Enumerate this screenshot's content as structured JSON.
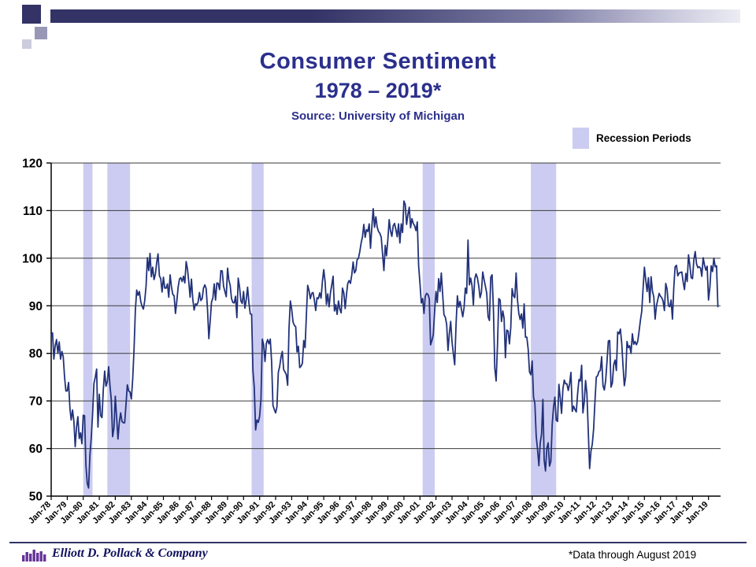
{
  "slide": {
    "title_line1": "Consumer Sentiment",
    "title_line2": "1978 – 2019*",
    "source_line": "Source: University of Michigan",
    "legend_label": "Recession Periods",
    "footer_company": "Elliott D. Pollack & Company",
    "footer_note": "*Data through August 2019"
  },
  "colors": {
    "accent_navy": "#2b2f8c",
    "line": "#22327a",
    "recession_band": "#ccccf2",
    "grid": "#3a3a3a",
    "logo_purple": "#663399"
  },
  "chart_data": {
    "type": "line",
    "title": "Consumer Sentiment 1978 – 2019 (Source: University of Michigan)",
    "xlabel": "",
    "ylabel": "",
    "ylim": [
      50,
      120
    ],
    "ytick_step": 10,
    "grid": true,
    "x_axis_min": 1978,
    "x_axis_max": 2019.75,
    "frequency": "monthly",
    "legend": {
      "label": "Recession Periods",
      "position": "top-right"
    },
    "x_tick_labels": [
      "Jan-78",
      "Jan-79",
      "Jan-80",
      "Jan-81",
      "Jan-82",
      "Jan-83",
      "Jan-84",
      "Jan-85",
      "Jan-86",
      "Jan-87",
      "Jan-88",
      "Jan-89",
      "Jan-90",
      "Jan-91",
      "Jan-92",
      "Jan-93",
      "Jan-94",
      "Jan-95",
      "Jan-96",
      "Jan-97",
      "Jan-98",
      "Jan-99",
      "Jan-00",
      "Jan-01",
      "Jan-02",
      "Jan-03",
      "Jan-04",
      "Jan-05",
      "Jan-06",
      "Jan-07",
      "Jan-08",
      "Jan-09",
      "Jan-10",
      "Jan-11",
      "Jan-12",
      "Jan-13",
      "Jan-14",
      "Jan-15",
      "Jan-16",
      "Jan-17",
      "Jan-18",
      "Jan-19"
    ],
    "recession_periods": [
      [
        1980.0,
        1980.58
      ],
      [
        1981.5,
        1982.92
      ],
      [
        1990.5,
        1991.25
      ],
      [
        2001.17,
        2001.92
      ],
      [
        2007.92,
        2009.5
      ]
    ],
    "series": [
      {
        "name": "University of Michigan Consumer Sentiment Index",
        "start": "1978-01",
        "end": "2019-08",
        "values": [
          83.7,
          84.3,
          78.8,
          81.6,
          82.9,
          80.0,
          82.4,
          78.8,
          80.4,
          79.3,
          75.0,
          72.1,
          72.1,
          73.9,
          68.4,
          66.0,
          68.1,
          65.8,
          60.4,
          64.5,
          66.7,
          62.1,
          63.3,
          61.0,
          67.0,
          66.9,
          56.5,
          52.7,
          51.7,
          58.7,
          62.3,
          67.3,
          73.7,
          75.0,
          76.7,
          64.5,
          71.4,
          66.9,
          66.5,
          72.4,
          76.3,
          73.1,
          74.1,
          77.2,
          73.1,
          70.3,
          62.5,
          64.3,
          71.0,
          66.5,
          62.0,
          65.5,
          67.5,
          65.7,
          65.4,
          65.4,
          69.3,
          73.4,
          72.1,
          71.9,
          70.4,
          74.6,
          80.8,
          89.1,
          93.3,
          92.2,
          93.0,
          90.9,
          89.9,
          89.3,
          91.1,
          94.2,
          100.1,
          97.4,
          101.0,
          96.1,
          98.1,
          95.5,
          96.6,
          99.1,
          100.9,
          96.3,
          95.7,
          92.9,
          96.0,
          93.7,
          93.7,
          94.6,
          91.8,
          96.5,
          94.0,
          92.4,
          92.1,
          88.4,
          90.9,
          93.9,
          95.6,
          95.9,
          95.1,
          96.2,
          94.8,
          99.3,
          97.7,
          94.9,
          91.8,
          95.6,
          91.4,
          89.1,
          90.4,
          90.2,
          90.8,
          92.8,
          91.1,
          91.5,
          93.7,
          94.4,
          93.6,
          89.3,
          83.1,
          86.8,
          90.8,
          91.6,
          94.6,
          91.2,
          94.8,
          94.7,
          93.4,
          97.4,
          97.3,
          94.1,
          93.0,
          91.9,
          97.9,
          95.4,
          94.3,
          91.5,
          90.7,
          90.6,
          92.0,
          87.5,
          95.8,
          93.9,
          91.0,
          90.5,
          93.0,
          89.5,
          91.3,
          93.9,
          90.6,
          88.3,
          88.2,
          76.4,
          72.8,
          63.9,
          66.0,
          65.5,
          66.8,
          70.4,
          83.0,
          81.8,
          78.3,
          82.1,
          82.9,
          82.0,
          83.0,
          78.3,
          69.1,
          68.2,
          67.5,
          68.8,
          76.0,
          77.2,
          79.2,
          80.4,
          76.6,
          76.1,
          75.5,
          73.3,
          85.3,
          91.0,
          89.3,
          86.6,
          85.9,
          85.6,
          80.3,
          81.5,
          77.0,
          77.3,
          77.9,
          82.7,
          81.2,
          88.2,
          94.3,
          93.2,
          91.5,
          92.6,
          92.8,
          91.2,
          89.0,
          91.7,
          91.5,
          92.7,
          91.6,
          95.1,
          97.6,
          95.1,
          90.3,
          92.5,
          89.8,
          92.7,
          94.4,
          96.2,
          88.9,
          90.2,
          88.2,
          91.0,
          89.3,
          88.5,
          93.7,
          92.7,
          89.4,
          92.4,
          94.7,
          95.3,
          94.7,
          96.5,
          99.2,
          96.9,
          97.4,
          99.7,
          100.0,
          101.4,
          103.2,
          104.5,
          107.1,
          104.4,
          106.0,
          105.6,
          107.2,
          102.1,
          106.6,
          110.4,
          106.5,
          108.7,
          106.5,
          105.6,
          105.2,
          104.4,
          100.9,
          97.4,
          102.7,
          100.5,
          103.9,
          108.1,
          105.7,
          104.6,
          106.8,
          107.3,
          106.0,
          104.5,
          107.2,
          103.2,
          107.2,
          105.4,
          112.0,
          111.3,
          107.1,
          109.2,
          110.7,
          106.4,
          108.3,
          107.3,
          106.8,
          105.8,
          107.6,
          98.4,
          94.7,
          90.6,
          91.5,
          88.4,
          92.0,
          92.6,
          92.4,
          91.5,
          81.8,
          82.7,
          83.9,
          88.8,
          93.0,
          90.7,
          95.7,
          93.0,
          96.9,
          92.4,
          88.1,
          87.6,
          86.1,
          80.6,
          84.2,
          86.7,
          82.4,
          79.9,
          77.6,
          86.0,
          92.1,
          89.7,
          90.9,
          89.3,
          87.7,
          89.6,
          93.7,
          92.6,
          103.8,
          94.4,
          95.8,
          94.2,
          90.2,
          95.6,
          96.7,
          95.9,
          94.2,
          91.7,
          92.8,
          97.1,
          95.5,
          94.1,
          92.6,
          87.7,
          86.9,
          96.0,
          96.5,
          89.1,
          76.9,
          74.2,
          81.6,
          91.5,
          91.2,
          86.7,
          88.9,
          87.4,
          79.1,
          84.9,
          84.7,
          82.0,
          85.4,
          93.6,
          92.1,
          91.7,
          96.9,
          91.3,
          88.4,
          87.1,
          88.3,
          85.3,
          90.4,
          83.4,
          83.4,
          80.9,
          76.1,
          75.5,
          78.4,
          70.8,
          69.5,
          62.6,
          59.8,
          56.4,
          61.2,
          63.0,
          70.3,
          57.6,
          55.3,
          60.1,
          61.2,
          56.3,
          57.3,
          65.1,
          68.7,
          70.8,
          66.0,
          65.7,
          73.5,
          70.6,
          67.4,
          72.5,
          74.4,
          73.6,
          73.6,
          72.2,
          73.6,
          76.0,
          67.8,
          68.9,
          68.2,
          67.7,
          71.6,
          74.5,
          74.2,
          77.5,
          67.5,
          69.8,
          74.3,
          71.5,
          63.7,
          55.8,
          59.4,
          60.9,
          64.1,
          69.9,
          75.0,
          75.3,
          76.2,
          76.4,
          79.3,
          73.2,
          72.3,
          74.3,
          78.3,
          82.6,
          82.7,
          72.9,
          73.8,
          77.6,
          78.6,
          76.4,
          84.5,
          84.1,
          85.1,
          82.1,
          77.5,
          73.2,
          75.1,
          82.5,
          81.2,
          81.6,
          80.0,
          84.1,
          81.9,
          82.5,
          81.8,
          82.5,
          84.6,
          86.9,
          88.8,
          93.6,
          98.1,
          95.4,
          93.0,
          95.9,
          90.7,
          96.1,
          93.1,
          91.9,
          87.2,
          90.0,
          91.3,
          92.6,
          92.0,
          91.7,
          91.0,
          89.0,
          94.7,
          93.5,
          90.0,
          89.8,
          91.2,
          87.2,
          93.8,
          98.2,
          98.5,
          96.3,
          96.9,
          97.0,
          97.1,
          95.0,
          93.4,
          96.8,
          95.1,
          100.7,
          98.5,
          95.9,
          95.7,
          99.7,
          101.4,
          98.8,
          98.0,
          98.2,
          97.9,
          96.2,
          100.1,
          98.6,
          97.5,
          98.3,
          91.2,
          93.8,
          98.4,
          97.2,
          100.0,
          98.2,
          98.4,
          89.8
        ]
      }
    ]
  }
}
